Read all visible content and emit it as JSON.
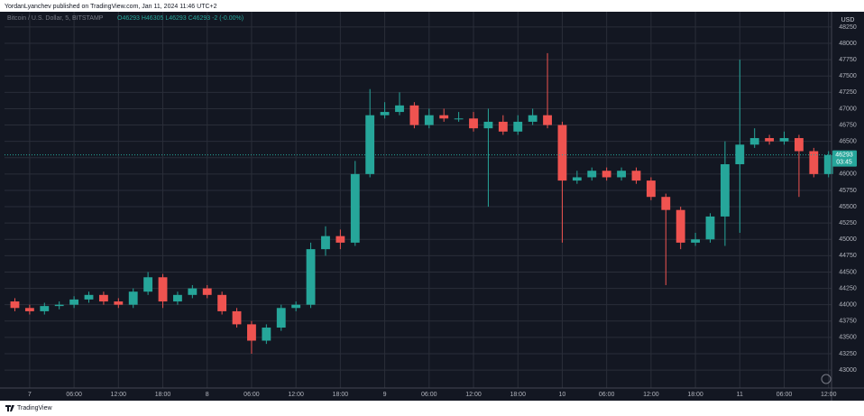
{
  "header": "YordanLyanchev published on TradingView.com, Jan 11, 2024 11:46 UTC+2",
  "footer": "TradingView",
  "chart_data": {
    "type": "candlestick",
    "symbol": "Bitcoin / U.S. Dollar, 5, BITSTAMP",
    "ohlc_legend": "O46293 H46305 L46293 C46293 -2 (-0.00%)",
    "currency": "USD",
    "last_price": 46293,
    "countdown": "03:45",
    "up_color": "#26a69a",
    "down_color": "#ef5350",
    "grid": true,
    "x": [
      -2,
      0,
      2,
      4,
      6,
      8,
      10,
      12,
      14,
      16,
      18,
      20,
      22,
      24,
      26,
      28,
      30,
      32,
      34,
      36,
      38,
      40,
      42,
      44,
      46,
      48,
      50,
      52,
      54,
      56,
      58,
      60,
      62,
      64,
      66,
      68,
      70,
      72,
      74,
      76,
      78,
      80,
      82,
      84,
      86,
      88,
      90,
      92,
      94,
      96,
      98,
      100,
      102,
      104,
      106,
      108
    ],
    "open": [
      44050,
      43950,
      43900,
      43980,
      44000,
      44080,
      44150,
      44050,
      44000,
      44200,
      44420,
      44050,
      44150,
      44250,
      44150,
      43900,
      43700,
      43450,
      43650,
      43950,
      44000,
      44850,
      45050,
      44950,
      46000,
      46900,
      46950,
      47050,
      46750,
      46900,
      46850,
      46850,
      46700,
      46800,
      46650,
      46800,
      46900,
      46750,
      45900,
      45950,
      46050,
      45950,
      46050,
      45900,
      45650,
      45450,
      44950,
      45000,
      45350,
      46150,
      46450,
      46550,
      46500,
      46550,
      46350,
      46000
    ],
    "high": [
      44100,
      44000,
      44030,
      44050,
      44130,
      44200,
      44200,
      44100,
      44250,
      44500,
      44470,
      44200,
      44300,
      44300,
      44200,
      43950,
      43750,
      43700,
      44000,
      44050,
      44950,
      45200,
      45150,
      46200,
      47300,
      47100,
      47250,
      47100,
      47000,
      47000,
      46950,
      46950,
      47000,
      46900,
      46900,
      47000,
      47850,
      46800,
      46050,
      46100,
      46100,
      46100,
      46100,
      45950,
      45700,
      45500,
      45100,
      45400,
      46500,
      47750,
      46700,
      46600,
      46650,
      46600,
      46400,
      46350
    ],
    "low": [
      43900,
      43850,
      43850,
      43930,
      43950,
      44030,
      44000,
      43950,
      43950,
      44150,
      43950,
      44000,
      44100,
      44100,
      43850,
      43650,
      43250,
      43400,
      43600,
      43900,
      43950,
      44750,
      44850,
      44900,
      45950,
      46850,
      46900,
      46700,
      46700,
      46800,
      46800,
      46650,
      45500,
      46600,
      46600,
      46750,
      46700,
      44950,
      45850,
      45900,
      45900,
      45900,
      45850,
      45600,
      44300,
      44850,
      44900,
      44950,
      44900,
      45100,
      46400,
      46450,
      46450,
      45650,
      45950,
      45950
    ],
    "close": [
      43950,
      43900,
      43980,
      44000,
      44080,
      44150,
      44050,
      44000,
      44200,
      44420,
      44050,
      44150,
      44250,
      44150,
      43900,
      43700,
      43450,
      43650,
      43950,
      44000,
      44850,
      45050,
      44950,
      46000,
      46900,
      46950,
      47050,
      46750,
      46900,
      46850,
      46850,
      46700,
      46800,
      46650,
      46800,
      46900,
      46750,
      45900,
      45950,
      46050,
      45950,
      46050,
      45900,
      45650,
      45450,
      44950,
      45000,
      45350,
      46150,
      46450,
      46550,
      46500,
      46550,
      46350,
      46000,
      46290
    ],
    "xlim": [
      -3.4,
      108.4
    ],
    "xticks": [
      {
        "value": 0,
        "label": "7"
      },
      {
        "value": 6,
        "label": "06:00"
      },
      {
        "value": 12,
        "label": "12:00"
      },
      {
        "value": 18,
        "label": "18:00"
      },
      {
        "value": 24,
        "label": "8"
      },
      {
        "value": 30,
        "label": "06:00"
      },
      {
        "value": 36,
        "label": "12:00"
      },
      {
        "value": 42,
        "label": "18:00"
      },
      {
        "value": 48,
        "label": "9"
      },
      {
        "value": 54,
        "label": "06:00"
      },
      {
        "value": 60,
        "label": "12:00"
      },
      {
        "value": 66,
        "label": "18:00"
      },
      {
        "value": 72,
        "label": "10"
      },
      {
        "value": 78,
        "label": "06:00"
      },
      {
        "value": 84,
        "label": "12:00"
      },
      {
        "value": 90,
        "label": "18:00"
      },
      {
        "value": 96,
        "label": "11"
      },
      {
        "value": 102,
        "label": "06:00"
      },
      {
        "value": 108,
        "label": "12:00"
      }
    ],
    "ylim": [
      42725,
      48470
    ],
    "yticks": [
      43000,
      43250,
      43500,
      43750,
      44000,
      44250,
      44500,
      44750,
      45000,
      45250,
      45500,
      45750,
      46000,
      46250,
      46500,
      46750,
      47000,
      47250,
      47500,
      47750,
      48000,
      48250
    ]
  }
}
